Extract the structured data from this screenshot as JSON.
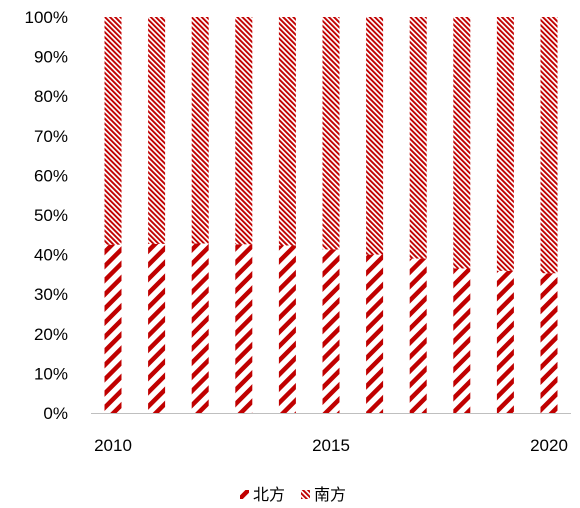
{
  "chart_data": {
    "type": "bar",
    "stacked": true,
    "percent": true,
    "x": [
      2010,
      2011,
      2012,
      2013,
      2014,
      2015,
      2016,
      2017,
      2018,
      2019,
      2020
    ],
    "x_tick_labels": [
      "2010",
      "2015",
      "2020"
    ],
    "y_tick_labels": [
      "0%",
      "10%",
      "20%",
      "30%",
      "40%",
      "50%",
      "60%",
      "70%",
      "80%",
      "90%",
      "100%"
    ],
    "ylim": [
      0,
      100
    ],
    "series": [
      {
        "name": "北方",
        "color": "#c00000",
        "pattern": "wide-diagonal",
        "values": [
          42.5,
          42.7,
          42.8,
          42.6,
          42.3,
          41.3,
          40.0,
          39.0,
          36.5,
          35.9,
          35.3
        ]
      },
      {
        "name": "南方",
        "color": "#c00000",
        "pattern": "dense-diagonal",
        "values": [
          57.5,
          57.3,
          57.2,
          57.4,
          57.7,
          58.7,
          60.0,
          61.0,
          63.5,
          64.1,
          64.7
        ]
      }
    ],
    "title": "",
    "xlabel": "",
    "ylabel": "",
    "grid": false,
    "legend": "bottom-center"
  }
}
